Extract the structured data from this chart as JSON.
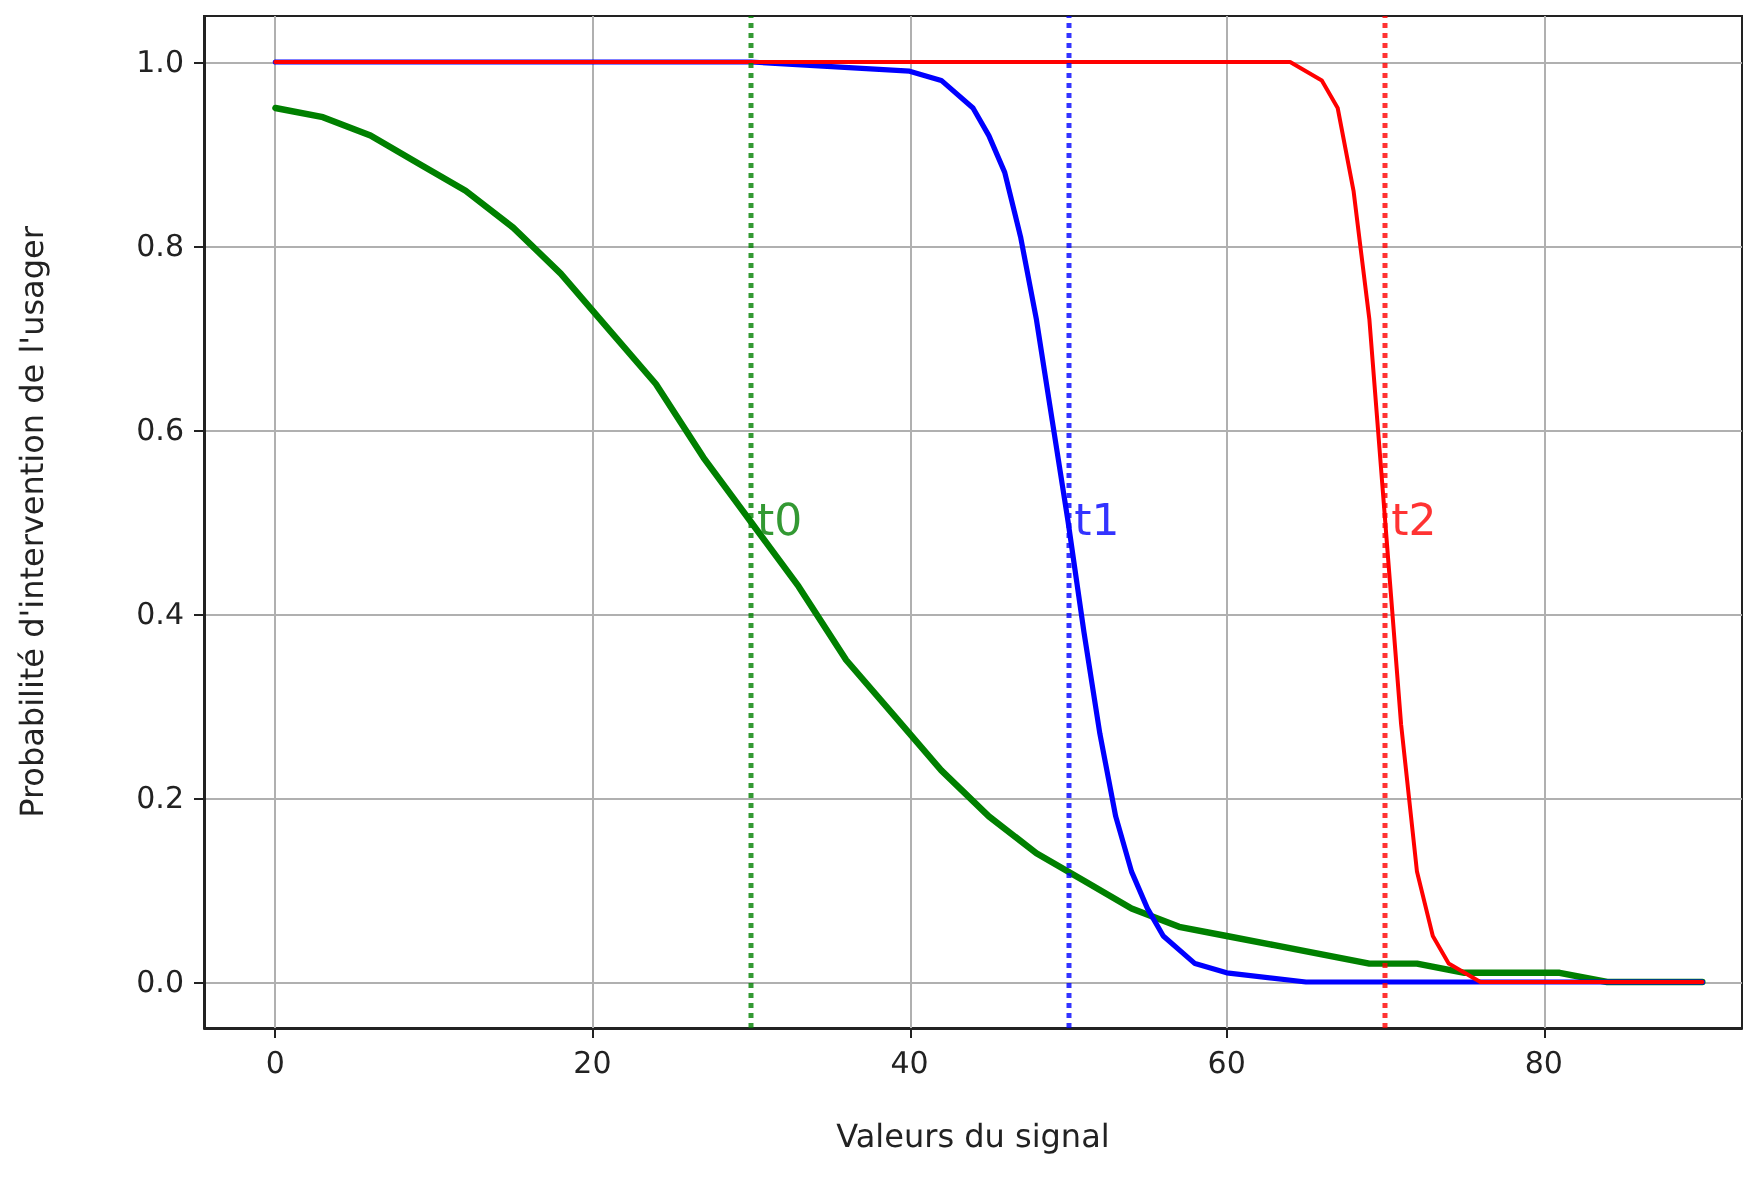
{
  "chart_data": {
    "type": "line",
    "xlabel": "Valeurs du signal",
    "ylabel": "Probabilité d'intervention de l'usager",
    "xlim": [
      -4.5,
      92.5
    ],
    "ylim": [
      -0.05,
      1.05
    ],
    "xticks": [
      0,
      20,
      40,
      60,
      80
    ],
    "yticks": [
      {
        "value": 0,
        "label": "0.0"
      },
      {
        "value": 0.2,
        "label": "0.2"
      },
      {
        "value": 0.4,
        "label": "0.4"
      },
      {
        "value": 0.6,
        "label": "0.6"
      },
      {
        "value": 0.8,
        "label": "0.8"
      },
      {
        "value": 1,
        "label": "1.0"
      }
    ],
    "grid": true,
    "marker": "none",
    "line_style": "solid",
    "series": [
      {
        "color": "#008000",
        "x": [
          0,
          3,
          6,
          9,
          12,
          15,
          18,
          21,
          24,
          27,
          30,
          33,
          36,
          39,
          42,
          45,
          48,
          51,
          54,
          57,
          60,
          63,
          66,
          69,
          72,
          75,
          78,
          81,
          84,
          87,
          90
        ],
        "values": [
          0.95,
          0.94,
          0.92,
          0.89,
          0.86,
          0.82,
          0.77,
          0.71,
          0.65,
          0.57,
          0.5,
          0.43,
          0.35,
          0.29,
          0.23,
          0.18,
          0.14,
          0.11,
          0.08,
          0.06,
          0.05,
          0.04,
          0.03,
          0.02,
          0.02,
          0.01,
          0.01,
          0.01,
          0.0,
          0.0,
          0.0
        ]
      },
      {
        "color": "#0000ff",
        "x": [
          0,
          30,
          40,
          42,
          44,
          45,
          46,
          47,
          48,
          49,
          50,
          51,
          52,
          53,
          54,
          55,
          56,
          58,
          60,
          65,
          90
        ],
        "values": [
          1.0,
          1.0,
          0.99,
          0.98,
          0.95,
          0.92,
          0.88,
          0.81,
          0.72,
          0.61,
          0.5,
          0.38,
          0.27,
          0.18,
          0.12,
          0.08,
          0.05,
          0.02,
          0.01,
          0.0,
          0.0
        ]
      },
      {
        "color": "#ff0000",
        "x": [
          0,
          60,
          64,
          65,
          66,
          67,
          68,
          69,
          70,
          71,
          72,
          73,
          74,
          75,
          76,
          80,
          90
        ],
        "values": [
          1.0,
          1.0,
          1.0,
          0.99,
          0.98,
          0.95,
          0.86,
          0.72,
          0.5,
          0.28,
          0.12,
          0.05,
          0.02,
          0.01,
          0.0,
          0.0,
          0.0
        ]
      }
    ],
    "ref_lines": [
      {
        "axis": "x",
        "value": 30,
        "color": "#008000",
        "line_style": "dotted"
      },
      {
        "axis": "x",
        "value": 50,
        "color": "#0000ff",
        "line_style": "dotted"
      },
      {
        "axis": "x",
        "value": 70,
        "color": "#ff0000",
        "line_style": "dotted"
      }
    ],
    "annotations": [
      {
        "text": "t0",
        "x": 30,
        "y": 0.5
      },
      {
        "text": "t1",
        "x": 50,
        "y": 0.5
      },
      {
        "text": "t2",
        "x": 70,
        "y": 0.5
      }
    ]
  }
}
